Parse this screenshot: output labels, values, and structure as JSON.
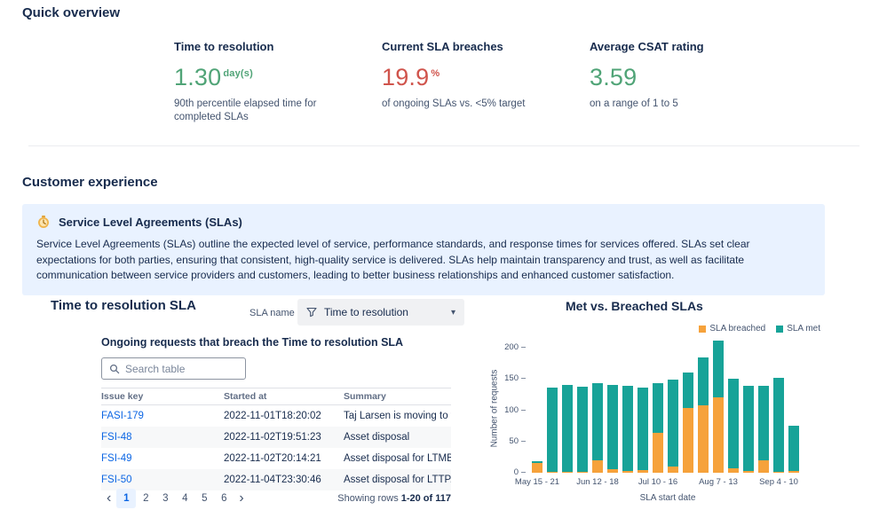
{
  "colors": {
    "green": "#50a477",
    "red": "#d0544c",
    "link": "#0C66E4",
    "panel": "#E9F2FF",
    "breached": "#F6A23B",
    "met": "#17a398"
  },
  "quick_overview": {
    "title": "Quick overview",
    "metrics": [
      {
        "label": "Time to resolution",
        "value": "1.30",
        "unit": "day(s)",
        "desc": "90th percentile elapsed time for completed SLAs"
      },
      {
        "label": "Current SLA breaches",
        "value": "19.9",
        "unit": "%",
        "desc": "of ongoing SLAs vs. <5% target"
      },
      {
        "label": "Average CSAT rating",
        "value": "3.59",
        "unit": "",
        "desc": "on a range of 1 to 5"
      }
    ]
  },
  "customer_experience": {
    "title": "Customer experience",
    "info_panel": {
      "title": "Service Level Agreements (SLAs)",
      "body": "Service Level Agreements (SLAs) outline the expected level of service, performance standards, and response times for services offered. SLAs set clear expectations for both parties, ensuring that consistent, high-quality service is delivered. SLAs help maintain transparency and trust, as well as facilitate communication between service providers and customers, leading to better business relationships and enhanced customer satisfaction."
    }
  },
  "sla_section": {
    "title": "Time to resolution SLA",
    "filter_label": "SLA name",
    "filter_value": "Time to resolution",
    "table_title": "Ongoing requests that breach the Time to resolution SLA",
    "search_placeholder": "Search table",
    "table": {
      "columns": [
        "Issue key",
        "Started at",
        "Summary"
      ],
      "rows": [
        {
          "key": "FASI-179",
          "started": "2022-11-01T18:20:02",
          "summary": "Taj Larsen is moving to t..."
        },
        {
          "key": "FSI-48",
          "started": "2022-11-02T19:51:23",
          "summary": "Asset disposal"
        },
        {
          "key": "FSI-49",
          "started": "2022-11-02T20:14:21",
          "summary": "Asset disposal for LTMB..."
        },
        {
          "key": "FSI-50",
          "started": "2022-11-04T23:30:46",
          "summary": "Asset disposal for LTTP..."
        }
      ]
    },
    "pagination": {
      "prev": "‹",
      "next": "›",
      "pages": [
        "1",
        "2",
        "3",
        "4",
        "5",
        "6"
      ],
      "current": "1",
      "showing_prefix": "Showing rows",
      "showing_range": "1-20 of 117"
    }
  },
  "chart_data": {
    "type": "bar",
    "stacked": true,
    "title": "Met vs. Breached SLAs",
    "xlabel": "SLA start date",
    "ylabel": "Number of requests",
    "ylim": [
      0,
      220
    ],
    "yticks": [
      0,
      50,
      100,
      150,
      200
    ],
    "x_tick_labels": [
      "May 15 - 21",
      "Jun 12 - 18",
      "Jul 10 - 16",
      "Aug 7 - 13",
      "Sep 4 - 10"
    ],
    "x_tick_positions": [
      0,
      4,
      8,
      12,
      16
    ],
    "legend": [
      "SLA breached",
      "SLA met"
    ],
    "grid": false,
    "legend_position": "top-right",
    "series": [
      {
        "name": "SLA breached",
        "color": "#F6A23B",
        "values": [
          15,
          2,
          2,
          2,
          20,
          5,
          3,
          4,
          64,
          10,
          104,
          108,
          120,
          7,
          3,
          20,
          2,
          3
        ]
      },
      {
        "name": "SLA met",
        "color": "#17a398",
        "values": [
          3,
          134,
          139,
          135,
          124,
          136,
          136,
          132,
          79,
          139,
          56,
          76,
          91,
          143,
          136,
          119,
          150,
          72
        ]
      }
    ]
  }
}
